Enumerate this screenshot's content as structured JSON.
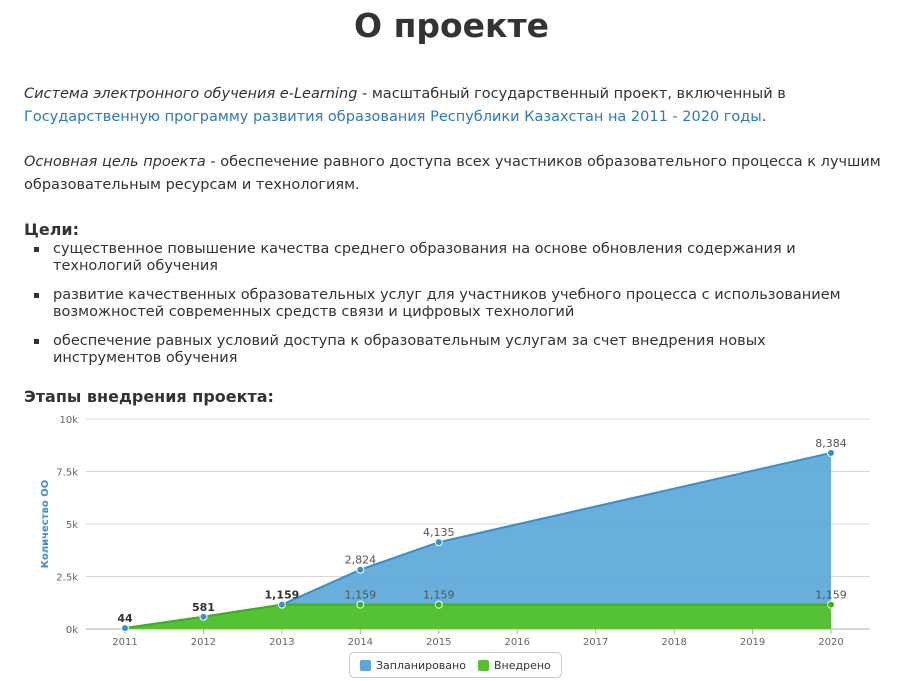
{
  "page": {
    "title": "О проекте",
    "intro": {
      "em": "Система электронного обучения e-Learning",
      "text": " - масштабный государственный проект, включенный в",
      "link": "Государственную программу развития образования Республики Казахстан на 2011 - 2020 годы",
      "end": "."
    },
    "purpose": {
      "em": "Основная цель проекта",
      "text": " - обеспечение равного доступа всех участников образовательного процесса к лучшим образовательным ресурсам и технологиям."
    },
    "goals_heading": "Цели:",
    "goals": [
      "существенное повышение качества среднего образования на основе обновления содержания и технологий обучения",
      "развитие качественных образовательных услуг для участников учебного процесса с использованием возможностей современных средств связи и цифровых технологий",
      "обеспечение равных условий доступа к образовательным услугам за счет внедрения новых инструментов обучения"
    ],
    "stages_heading": "Этапы внедрения проекта:"
  },
  "colors": {
    "planned": "#5ba8d8",
    "planned_line": "#3a8fc9",
    "implemented": "#55c236",
    "implemented_line": "#3fae1f",
    "link": "#2a7bbf"
  },
  "chart_data": {
    "type": "area",
    "x": [
      2011,
      2012,
      2013,
      2014,
      2015,
      2016,
      2017,
      2018,
      2019,
      2020
    ],
    "ylabel": "Количество ОО",
    "ylim": [
      0,
      10000
    ],
    "yticks": [
      "0k",
      "2.5k",
      "5k",
      "7.5k",
      "10k"
    ],
    "grid": true,
    "legend_position": "bottom-center",
    "series": [
      {
        "name": "Запланировано",
        "values": [
          44,
          581,
          1159,
          2824,
          4135,
          null,
          null,
          null,
          null,
          8384
        ],
        "labels": [
          "44",
          "581",
          "1,159",
          "2,824",
          "4,135",
          "",
          "",
          "",
          "",
          "8,384"
        ]
      },
      {
        "name": "Внедрено",
        "values": [
          44,
          581,
          1159,
          1159,
          1159,
          null,
          null,
          null,
          null,
          1159
        ],
        "labels": [
          "",
          "",
          "",
          "1,159",
          "1,159",
          "",
          "",
          "",
          "",
          "1,159"
        ]
      }
    ]
  }
}
